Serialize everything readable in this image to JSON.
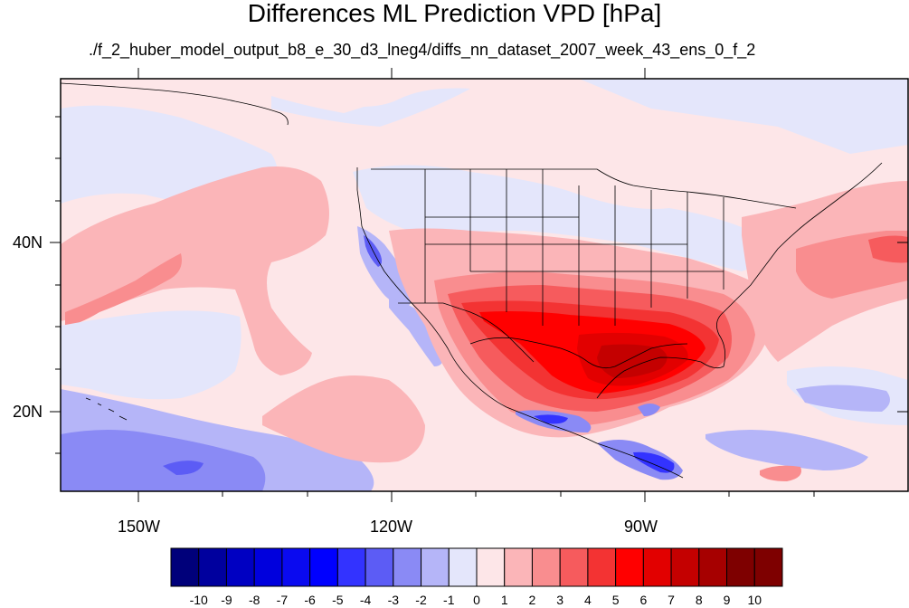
{
  "title": "Differences ML Prediction VPD [hPa]",
  "subtitle": "./f_2_huber_model_output_b8_e_30_d3_lneg4/diffs_nn_dataset_2007_week_43_ens_0_f_2",
  "axes": {
    "lat_labels": [
      "40N",
      "20N"
    ],
    "lon_labels": [
      "150W",
      "120W",
      "90W"
    ]
  },
  "colorbar": {
    "labels": [
      "-10",
      "-9",
      "-8",
      "-7",
      "-6",
      "-5",
      "-4",
      "-3",
      "-2",
      "-1",
      "0",
      "1",
      "2",
      "3",
      "4",
      "5",
      "6",
      "7",
      "8",
      "9",
      "10"
    ],
    "colors": [
      "#00007a",
      "#00009e",
      "#0000c2",
      "#0000dd",
      "#0a0af0",
      "#0000ff",
      "#3333ff",
      "#5c5cf5",
      "#8a8af5",
      "#b5b5f8",
      "#e4e6fb",
      "#fde6e8",
      "#fbb5b8",
      "#f98d8f",
      "#f65b5d",
      "#f33333",
      "#ff0000",
      "#e20000",
      "#c40000",
      "#a60000",
      "#7e0000"
    ]
  },
  "chart_data": {
    "type": "heatmap",
    "title": "Differences ML Prediction VPD [hPa]",
    "subtitle": "./f_2_huber_model_output_b8_e_30_d3_lneg4/diffs_nn_dataset_2007_week_43_ens_0_f_2",
    "lon_range": [
      -160,
      -62
    ],
    "lat_range": [
      11,
      60
    ],
    "xticks": [
      "150W",
      "120W",
      "90W"
    ],
    "yticks": [
      "40N",
      "20N"
    ],
    "colorbar_range": [
      -10,
      10
    ]
  }
}
